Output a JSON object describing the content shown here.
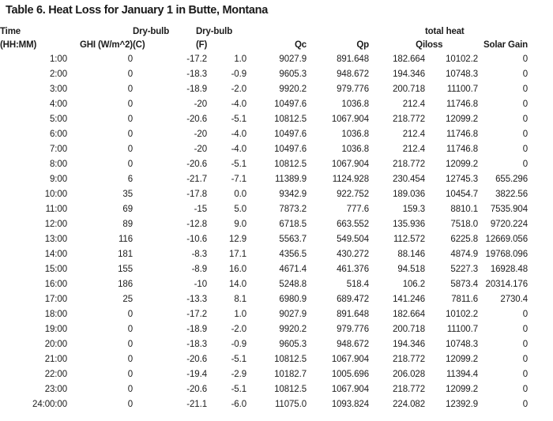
{
  "title": "Table 6. Heat Loss for January 1 in Butte, Montana",
  "table": {
    "columns": [
      {
        "id": "time",
        "label": "Time\n(HH:MM)"
      },
      {
        "id": "ghi",
        "label": "GHI (W/m^2)"
      },
      {
        "id": "dbc",
        "label": "Dry-bulb\n(C)"
      },
      {
        "id": "dbf",
        "label": "Dry-bulb\n(F)"
      },
      {
        "id": "qc",
        "label": "Qc"
      },
      {
        "id": "qp",
        "label": "Qp"
      },
      {
        "id": "qi",
        "label": "Qi"
      },
      {
        "id": "loss",
        "label": "total heat\nloss"
      },
      {
        "id": "solar",
        "label": "Solar Gain"
      }
    ],
    "rows": [
      [
        "1:00",
        "0",
        "-17.2",
        "1.0",
        "9027.9",
        "891.648",
        "182.664",
        "10102.2",
        "0"
      ],
      [
        "2:00",
        "0",
        "-18.3",
        "-0.9",
        "9605.3",
        "948.672",
        "194.346",
        "10748.3",
        "0"
      ],
      [
        "3:00",
        "0",
        "-18.9",
        "-2.0",
        "9920.2",
        "979.776",
        "200.718",
        "11100.7",
        "0"
      ],
      [
        "4:00",
        "0",
        "-20",
        "-4.0",
        "10497.6",
        "1036.8",
        "212.4",
        "11746.8",
        "0"
      ],
      [
        "5:00",
        "0",
        "-20.6",
        "-5.1",
        "10812.5",
        "1067.904",
        "218.772",
        "12099.2",
        "0"
      ],
      [
        "6:00",
        "0",
        "-20",
        "-4.0",
        "10497.6",
        "1036.8",
        "212.4",
        "11746.8",
        "0"
      ],
      [
        "7:00",
        "0",
        "-20",
        "-4.0",
        "10497.6",
        "1036.8",
        "212.4",
        "11746.8",
        "0"
      ],
      [
        "8:00",
        "0",
        "-20.6",
        "-5.1",
        "10812.5",
        "1067.904",
        "218.772",
        "12099.2",
        "0"
      ],
      [
        "9:00",
        "6",
        "-21.7",
        "-7.1",
        "11389.9",
        "1124.928",
        "230.454",
        "12745.3",
        "655.296"
      ],
      [
        "10:00",
        "35",
        "-17.8",
        "0.0",
        "9342.9",
        "922.752",
        "189.036",
        "10454.7",
        "3822.56"
      ],
      [
        "11:00",
        "69",
        "-15",
        "5.0",
        "7873.2",
        "777.6",
        "159.3",
        "8810.1",
        "7535.904"
      ],
      [
        "12:00",
        "89",
        "-12.8",
        "9.0",
        "6718.5",
        "663.552",
        "135.936",
        "7518.0",
        "9720.224"
      ],
      [
        "13:00",
        "116",
        "-10.6",
        "12.9",
        "5563.7",
        "549.504",
        "112.572",
        "6225.8",
        "12669.056"
      ],
      [
        "14:00",
        "181",
        "-8.3",
        "17.1",
        "4356.5",
        "430.272",
        "88.146",
        "4874.9",
        "19768.096"
      ],
      [
        "15:00",
        "155",
        "-8.9",
        "16.0",
        "4671.4",
        "461.376",
        "94.518",
        "5227.3",
        "16928.48"
      ],
      [
        "16:00",
        "186",
        "-10",
        "14.0",
        "5248.8",
        "518.4",
        "106.2",
        "5873.4",
        "20314.176"
      ],
      [
        "17:00",
        "25",
        "-13.3",
        "8.1",
        "6980.9",
        "689.472",
        "141.246",
        "7811.6",
        "2730.4"
      ],
      [
        "18:00",
        "0",
        "-17.2",
        "1.0",
        "9027.9",
        "891.648",
        "182.664",
        "10102.2",
        "0"
      ],
      [
        "19:00",
        "0",
        "-18.9",
        "-2.0",
        "9920.2",
        "979.776",
        "200.718",
        "11100.7",
        "0"
      ],
      [
        "20:00",
        "0",
        "-18.3",
        "-0.9",
        "9605.3",
        "948.672",
        "194.346",
        "10748.3",
        "0"
      ],
      [
        "21:00",
        "0",
        "-20.6",
        "-5.1",
        "10812.5",
        "1067.904",
        "218.772",
        "12099.2",
        "0"
      ],
      [
        "22:00",
        "0",
        "-19.4",
        "-2.9",
        "10182.7",
        "1005.696",
        "206.028",
        "11394.4",
        "0"
      ],
      [
        "23:00",
        "0",
        "-20.6",
        "-5.1",
        "10812.5",
        "1067.904",
        "218.772",
        "12099.2",
        "0"
      ],
      [
        "24:00:00",
        "0",
        "-21.1",
        "-6.0",
        "11075.0",
        "1093.824",
        "224.082",
        "12392.9",
        "0"
      ]
    ]
  }
}
